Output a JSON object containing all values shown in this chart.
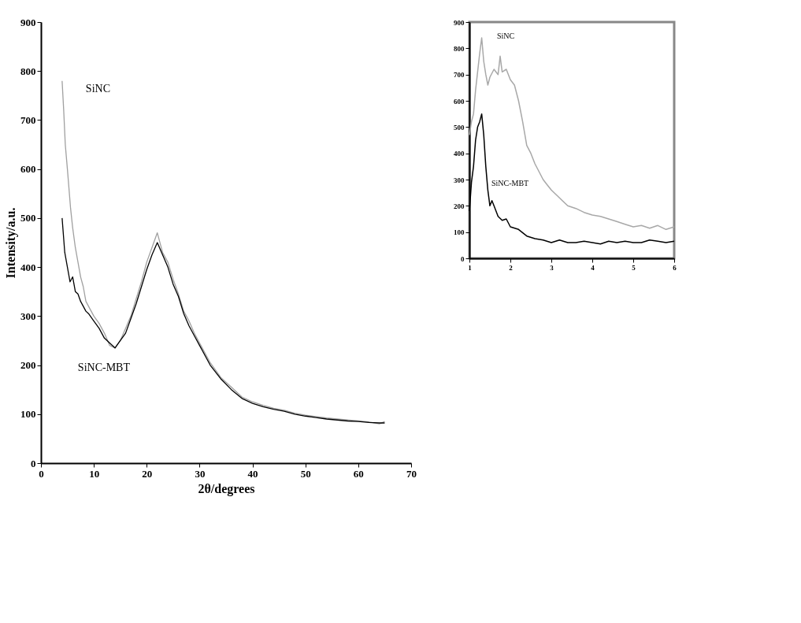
{
  "chart_data": [
    {
      "type": "line",
      "xlabel": "2θ/degrees",
      "ylabel": "Intensity/a.u.",
      "xlim": [
        0,
        70
      ],
      "xticks": [
        0,
        10,
        20,
        30,
        40,
        50,
        60,
        70
      ],
      "ylim": [
        0,
        900
      ],
      "yticks": [
        0,
        100,
        200,
        300,
        400,
        500,
        600,
        700,
        800,
        900
      ],
      "grid": false,
      "legend": false,
      "marker": "none",
      "line_style": "solid",
      "series": [
        {
          "name": "SiNC",
          "color": "#a0a0a0",
          "x": [
            4,
            4.3,
            4.6,
            5,
            5.3,
            5.6,
            6,
            6.5,
            7,
            7.5,
            8,
            8.5,
            9,
            10,
            11,
            12,
            13,
            14,
            15,
            16,
            17,
            18,
            19,
            20,
            21,
            22,
            23,
            24,
            25,
            26,
            27,
            28,
            29,
            30,
            32,
            34,
            36,
            38,
            40,
            42,
            44,
            46,
            48,
            50,
            52,
            54,
            56,
            58,
            60,
            62,
            64,
            65
          ],
          "values": [
            780,
            720,
            650,
            600,
            560,
            520,
            480,
            440,
            410,
            380,
            360,
            330,
            320,
            300,
            285,
            265,
            240,
            235,
            250,
            275,
            300,
            335,
            370,
            410,
            440,
            470,
            430,
            410,
            375,
            345,
            310,
            290,
            265,
            245,
            205,
            175,
            155,
            135,
            125,
            118,
            112,
            108,
            102,
            98,
            95,
            92,
            90,
            88,
            86,
            84,
            80,
            85
          ]
        },
        {
          "name": "SiNC-MBT",
          "color": "#000000",
          "x": [
            4,
            4.5,
            5,
            5.5,
            6,
            6.5,
            7,
            7.5,
            8,
            8.5,
            9,
            10,
            11,
            12,
            13,
            14,
            15,
            16,
            17,
            18,
            19,
            20,
            21,
            22,
            23,
            24,
            25,
            26,
            27,
            28,
            29,
            30,
            32,
            34,
            36,
            38,
            40,
            42,
            44,
            46,
            48,
            50,
            52,
            54,
            56,
            58,
            60,
            62,
            64,
            65
          ],
          "values": [
            500,
            430,
            400,
            370,
            380,
            350,
            345,
            330,
            320,
            310,
            305,
            290,
            275,
            255,
            245,
            235,
            250,
            265,
            295,
            325,
            360,
            395,
            425,
            450,
            425,
            400,
            365,
            340,
            305,
            280,
            260,
            240,
            200,
            172,
            150,
            132,
            122,
            115,
            110,
            106,
            100,
            96,
            93,
            90,
            88,
            86,
            85,
            83,
            82,
            82
          ]
        }
      ]
    },
    {
      "type": "line",
      "xlim": [
        1,
        6
      ],
      "xticks": [
        1,
        2,
        3,
        4,
        5,
        6
      ],
      "ylim": [
        0,
        900
      ],
      "yticks": [
        0,
        100,
        200,
        300,
        400,
        500,
        600,
        700,
        800,
        900
      ],
      "grid": false,
      "legend": false,
      "marker": "none",
      "line_style": "solid",
      "series": [
        {
          "name": "SiNC",
          "color": "#a8a8a8",
          "x": [
            1,
            1.05,
            1.1,
            1.15,
            1.2,
            1.25,
            1.3,
            1.35,
            1.4,
            1.45,
            1.5,
            1.6,
            1.7,
            1.75,
            1.8,
            1.9,
            2.0,
            2.1,
            2.2,
            2.3,
            2.4,
            2.5,
            2.6,
            2.7,
            2.8,
            2.9,
            3.0,
            3.2,
            3.4,
            3.6,
            3.8,
            4.0,
            4.2,
            4.4,
            4.6,
            4.8,
            5.0,
            5.2,
            5.4,
            5.6,
            5.8,
            6.0
          ],
          "values": [
            470,
            520,
            550,
            640,
            710,
            780,
            840,
            750,
            700,
            660,
            690,
            720,
            700,
            770,
            710,
            720,
            680,
            660,
            600,
            520,
            430,
            400,
            360,
            330,
            300,
            280,
            260,
            230,
            200,
            190,
            175,
            165,
            160,
            150,
            140,
            130,
            120,
            125,
            115,
            125,
            110,
            120
          ]
        },
        {
          "name": "SiNC-MBT",
          "color": "#000000",
          "x": [
            1,
            1.05,
            1.1,
            1.15,
            1.2,
            1.25,
            1.3,
            1.35,
            1.4,
            1.45,
            1.5,
            1.55,
            1.6,
            1.7,
            1.8,
            1.9,
            2.0,
            2.2,
            2.4,
            2.6,
            2.8,
            3.0,
            3.2,
            3.4,
            3.6,
            3.8,
            4.0,
            4.2,
            4.4,
            4.6,
            4.8,
            5.0,
            5.2,
            5.4,
            5.6,
            5.8,
            6.0
          ],
          "values": [
            180,
            290,
            350,
            450,
            500,
            520,
            550,
            470,
            350,
            260,
            200,
            220,
            200,
            160,
            145,
            150,
            120,
            110,
            85,
            75,
            70,
            60,
            70,
            60,
            60,
            65,
            60,
            55,
            65,
            60,
            65,
            60,
            60,
            70,
            65,
            60,
            65
          ]
        }
      ]
    }
  ]
}
